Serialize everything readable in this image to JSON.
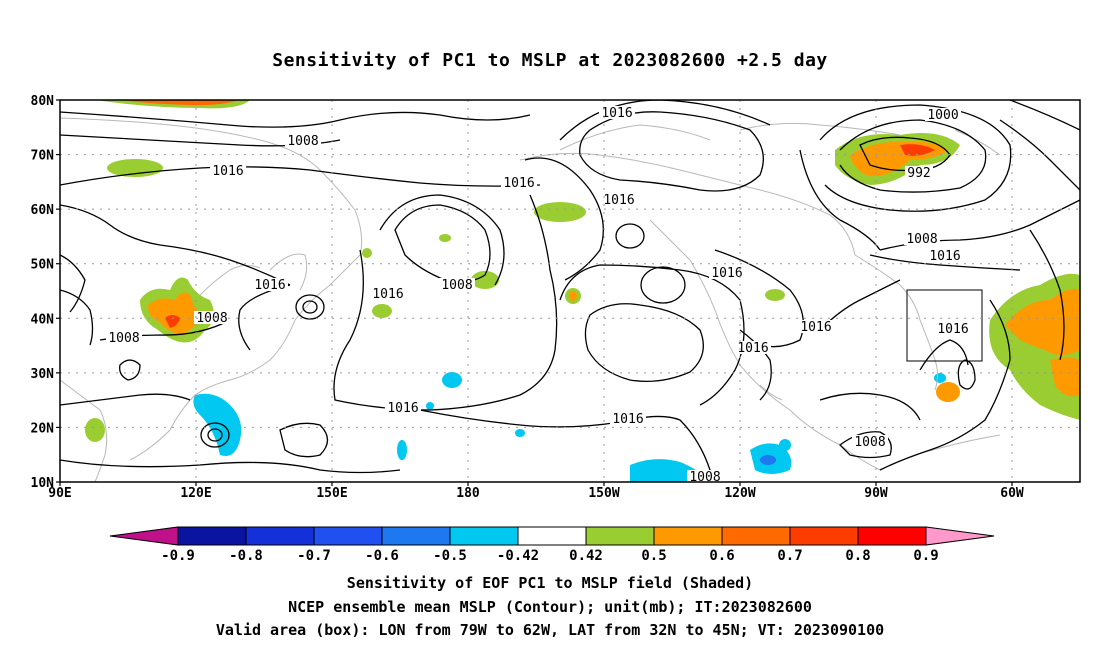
{
  "title": "Sensitivity of PC1 to MSLP at 2023082600 +2.5 day",
  "axes": {
    "lat_labels": [
      "80N",
      "70N",
      "60N",
      "50N",
      "40N",
      "30N",
      "20N",
      "10N"
    ],
    "lon_labels": [
      "90E",
      "120E",
      "150E",
      "180",
      "150W",
      "120W",
      "90W",
      "60W"
    ],
    "lat_range": [
      10,
      80
    ],
    "lon_range": [
      90,
      315
    ]
  },
  "contour_labels": [
    "1008",
    "1016",
    "1016",
    "1016",
    "1016",
    "1008",
    "1008",
    "1016",
    "1016",
    "1016",
    "1016",
    "1008",
    "1016",
    "1016",
    "1016",
    "1000",
    "992",
    "1008",
    "1016",
    "1016",
    "1008",
    "1008"
  ],
  "valid_box": {
    "lon_west": "79W",
    "lon_east": "62W",
    "lat_south": "32N",
    "lat_north": "45N"
  },
  "colorbar": {
    "tick_labels": [
      "-0.9",
      "-0.8",
      "-0.7",
      "-0.6",
      "-0.5",
      "-0.42",
      "0.42",
      "0.5",
      "0.6",
      "0.7",
      "0.8",
      "0.9"
    ],
    "colors": [
      "#c0108a",
      "#0a14a0",
      "#1430d8",
      "#2050f0",
      "#1e78f0",
      "#00c8f0",
      "#ffffff",
      "#9acd32",
      "#ff9900",
      "#ff6a00",
      "#ff3c00",
      "#ff0000",
      "#ff99cc"
    ]
  },
  "captions": {
    "line1": "Sensitivity of EOF PC1 to MSLP field (Shaded)",
    "line2": "NCEP ensemble mean MSLP (Contour); unit(mb); IT:2023082600",
    "line3": "Valid area (box): LON from 79W to 62W, LAT from 32N to 45N; VT: 2023090100"
  }
}
